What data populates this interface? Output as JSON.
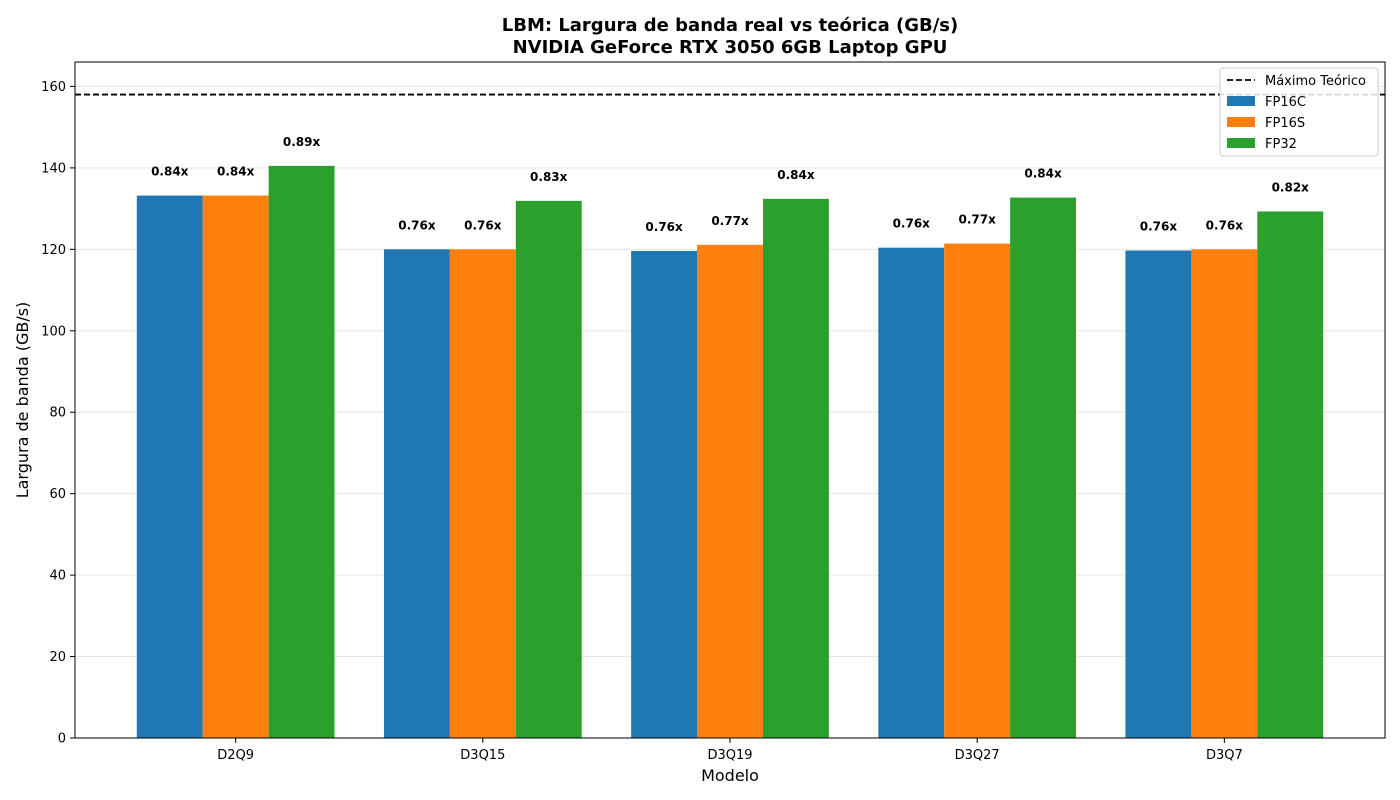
{
  "chart_data": {
    "type": "bar",
    "title_lines": [
      "LBM: Largura de banda real vs teórica (GB/s)",
      "NVIDIA GeForce RTX 3050 6GB Laptop GPU"
    ],
    "xlabel": "Modelo",
    "ylabel": "Largura de banda (GB/s)",
    "ylim": [
      0,
      166
    ],
    "yticks": [
      0,
      20,
      40,
      60,
      80,
      100,
      120,
      140,
      160
    ],
    "grid": "horizontal",
    "legend_position": "top-right",
    "categories": [
      "D2Q9",
      "D3Q15",
      "D3Q19",
      "D3Q27",
      "D3Q7"
    ],
    "series": [
      {
        "name": "FP16C",
        "color": "#1f77b4",
        "values": [
          133.2,
          120.0,
          119.6,
          120.4,
          119.7
        ],
        "labels": [
          "0.84x",
          "0.76x",
          "0.76x",
          "0.76x",
          "0.76x"
        ]
      },
      {
        "name": "FP16S",
        "color": "#ff7f0e",
        "values": [
          133.2,
          120.0,
          121.1,
          121.4,
          120.0
        ],
        "labels": [
          "0.84x",
          "0.76x",
          "0.77x",
          "0.77x",
          "0.76x"
        ]
      },
      {
        "name": "FP32",
        "color": "#2ca02c",
        "values": [
          140.5,
          131.9,
          132.4,
          132.7,
          129.3
        ],
        "labels": [
          "0.89x",
          "0.83x",
          "0.84x",
          "0.84x",
          "0.82x"
        ]
      }
    ],
    "reference_line": {
      "name": "Máximo Teórico",
      "value": 158,
      "style": "dashed",
      "color": "#000000"
    }
  }
}
